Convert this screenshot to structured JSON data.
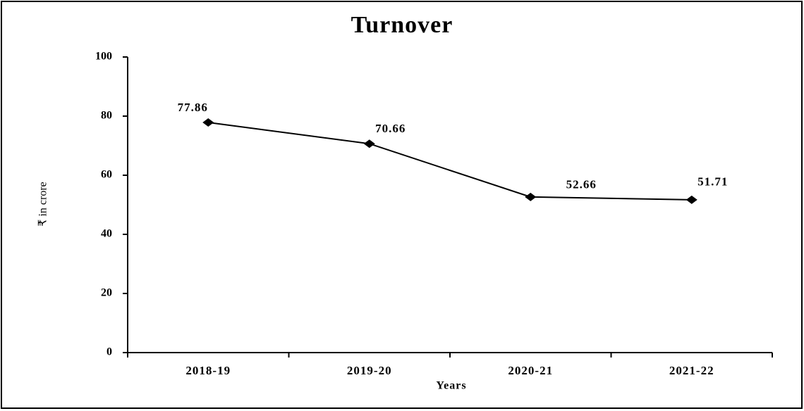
{
  "chart_data": {
    "type": "line",
    "title": "Turnover",
    "x_label": "Years",
    "y_label": "₹ in crore",
    "categories": [
      "2018-19",
      "2019-20",
      "2020-21",
      "2021-22"
    ],
    "series": [
      {
        "name": "Turnover",
        "color": "#000000",
        "values": [
          77.86,
          70.66,
          52.66,
          51.71
        ]
      }
    ],
    "ylim": [
      0,
      100
    ],
    "yticks": [
      0,
      20,
      40,
      60,
      80,
      100
    ],
    "grid": false
  }
}
